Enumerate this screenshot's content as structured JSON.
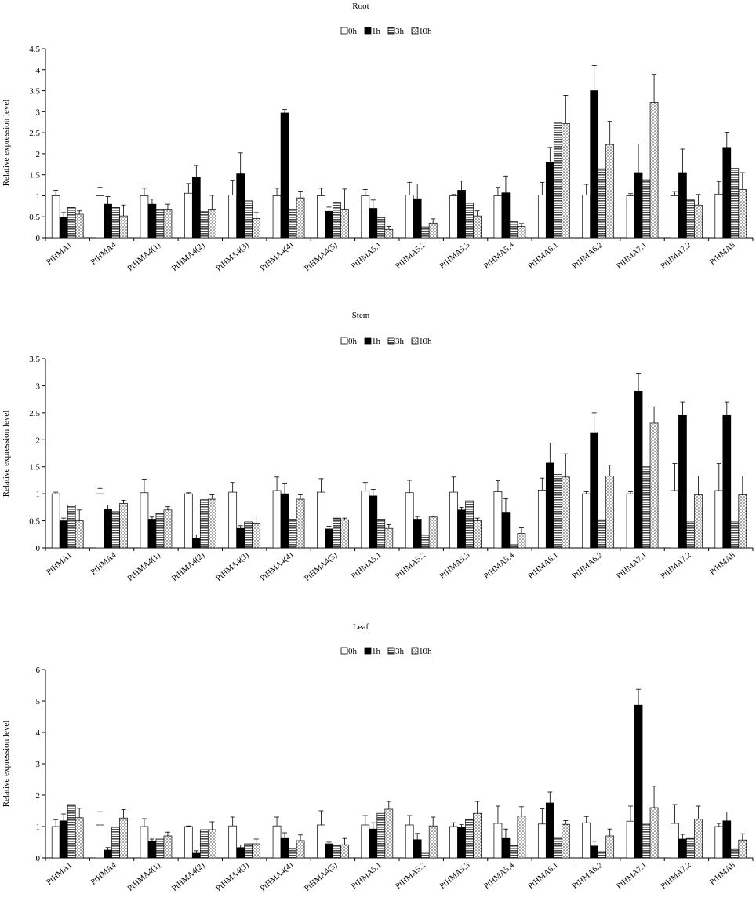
{
  "series_styles": [
    {
      "name": "0h",
      "fill": "#ffffff",
      "pattern": "none"
    },
    {
      "name": "1h",
      "fill": "#000000",
      "pattern": "none"
    },
    {
      "name": "3h",
      "fill": "#5a5a5a",
      "pattern": "hstripes"
    },
    {
      "name": "10h",
      "fill": "#ffffff",
      "pattern": "dots"
    }
  ],
  "chart_data": [
    {
      "type": "bar",
      "title": "Root",
      "ylabel": "Relative expression level",
      "xlabel": "",
      "ylim": [
        0,
        4.5
      ],
      "yticks": [
        "0",
        "0.5",
        "1",
        "1.5",
        "2",
        "2.5",
        "3",
        "3.5",
        "4",
        "4.5"
      ],
      "legend": "top-center",
      "grid": false,
      "categories": [
        "PtHMA1",
        "PtHMA4",
        "PtHMA4(1)",
        "PtHMA4(2)",
        "PtHMA4(3)",
        "PtHMA4(4)",
        "PtHMA4(5)",
        "PtHMA5.1",
        "PtHMA5.2",
        "PtHMA5.3",
        "PtHMA5.4",
        "PtHMA6.1",
        "PtHMA6.2",
        "PtHMA7.1",
        "PtHMA7.2",
        "PtHMA8"
      ],
      "series": [
        {
          "name": "0h",
          "values": [
            1.0,
            1.0,
            1.0,
            1.06,
            1.02,
            1.0,
            1.0,
            1.0,
            1.02,
            1.0,
            1.0,
            1.02,
            1.02,
            1.0,
            1.0,
            1.04
          ],
          "errors": [
            0.13,
            0.2,
            0.18,
            0.23,
            0.35,
            0.18,
            0.18,
            0.15,
            0.3,
            0.03,
            0.2,
            0.3,
            0.25,
            0.05,
            0.1,
            0.3
          ]
        },
        {
          "name": "1h",
          "values": [
            0.48,
            0.8,
            0.8,
            1.44,
            1.52,
            2.97,
            0.63,
            0.7,
            0.93,
            1.13,
            1.07,
            1.8,
            3.5,
            1.55,
            1.55,
            2.15
          ],
          "errors": [
            0.12,
            0.18,
            0.12,
            0.28,
            0.5,
            0.08,
            0.1,
            0.2,
            0.35,
            0.22,
            0.4,
            0.35,
            0.6,
            0.68,
            0.56,
            0.36
          ]
        },
        {
          "name": "3h",
          "values": [
            0.72,
            0.72,
            0.68,
            0.62,
            0.88,
            0.68,
            0.85,
            0.48,
            0.26,
            0.83,
            0.38,
            2.73,
            1.64,
            1.38,
            0.9,
            1.65
          ]
        },
        {
          "name": "10h",
          "values": [
            0.56,
            0.52,
            0.68,
            0.68,
            0.46,
            0.95,
            0.68,
            0.2,
            0.35,
            0.52,
            0.27,
            2.72,
            2.22,
            3.22,
            0.78,
            1.15
          ],
          "errors": [
            0.08,
            0.26,
            0.12,
            0.33,
            0.14,
            0.16,
            0.48,
            0.07,
            0.1,
            0.12,
            0.07,
            0.67,
            0.55,
            0.67,
            0.25,
            0.4
          ]
        }
      ]
    },
    {
      "type": "bar",
      "title": "Stem",
      "ylabel": "Relative expression level",
      "xlabel": "",
      "ylim": [
        0,
        3.5
      ],
      "yticks": [
        "0",
        "0.5",
        "1",
        "1.5",
        "2",
        "2.5",
        "3",
        "3.5"
      ],
      "legend": "top-center",
      "grid": false,
      "categories": [
        "PtHMA1",
        "PtHMA4",
        "PtHMA4(1)",
        "PtHMA4(2)",
        "PtHMA4(3)",
        "PtHMA4(4)",
        "PtHMA4(5)",
        "PtHMA5.1",
        "PtHMA5.2",
        "PtHMA5.3",
        "PtHMA5.4",
        "PtHMA6.1",
        "PtHMA6.2",
        "PtHMA7.1",
        "PtHMA7.2",
        "PtHMA8"
      ],
      "series": [
        {
          "name": "0h",
          "values": [
            1.0,
            1.0,
            1.02,
            1.0,
            1.03,
            1.06,
            1.03,
            1.05,
            1.02,
            1.03,
            1.04,
            1.07,
            1.0,
            1.0,
            1.06,
            1.06
          ],
          "errors": [
            0.03,
            0.1,
            0.25,
            0.02,
            0.18,
            0.25,
            0.25,
            0.16,
            0.23,
            0.28,
            0.2,
            0.22,
            0.04,
            0.04,
            0.5,
            0.5
          ]
        },
        {
          "name": "1h",
          "values": [
            0.5,
            0.71,
            0.53,
            0.17,
            0.36,
            1.0,
            0.35,
            0.96,
            0.53,
            0.7,
            0.66,
            1.57,
            2.12,
            2.9,
            2.45,
            2.45
          ],
          "errors": [
            0.05,
            0.08,
            0.04,
            0.07,
            0.05,
            0.2,
            0.05,
            0.12,
            0.05,
            0.05,
            0.25,
            0.37,
            0.38,
            0.33,
            0.25,
            0.25
          ]
        },
        {
          "name": "3h",
          "values": [
            0.79,
            0.67,
            0.64,
            0.89,
            0.48,
            0.53,
            0.55,
            0.53,
            0.24,
            0.87,
            0.06,
            1.36,
            0.52,
            1.5,
            0.48,
            0.48
          ]
        },
        {
          "name": "10h",
          "values": [
            0.5,
            0.82,
            0.7,
            0.9,
            0.46,
            0.9,
            0.52,
            0.36,
            0.57,
            0.5,
            0.27,
            1.31,
            1.33,
            2.31,
            0.98,
            0.98
          ],
          "errors": [
            0.2,
            0.06,
            0.06,
            0.08,
            0.13,
            0.08,
            0.03,
            0.07,
            0.02,
            0.05,
            0.1,
            0.43,
            0.2,
            0.3,
            0.35,
            0.35
          ]
        }
      ]
    },
    {
      "type": "bar",
      "title": "Leaf",
      "ylabel": "Relative expression level",
      "xlabel": "",
      "ylim": [
        0,
        6
      ],
      "yticks": [
        "0",
        "1",
        "2",
        "3",
        "4",
        "5",
        "6"
      ],
      "legend": "top-center",
      "grid": false,
      "categories": [
        "PtHMA1",
        "PtHMA4",
        "PtHMA4(1)",
        "PtHMA4(2)",
        "PtHMA4(3)",
        "PtHMA4(4)",
        "PtHMA4(5)",
        "PtHMA5.1",
        "PtHMA5.2",
        "PtHMA5.3",
        "PtHMA5.4",
        "PtHMA6.1",
        "PtHMA6.2",
        "PtHMA7.1",
        "PtHMA7.2",
        "PtHMA8"
      ],
      "series": [
        {
          "name": "0h",
          "values": [
            1.0,
            1.05,
            1.0,
            1.0,
            1.02,
            1.02,
            1.05,
            1.05,
            1.05,
            1.0,
            1.1,
            1.08,
            1.12,
            1.17,
            1.1,
            1.0
          ],
          "errors": [
            0.22,
            0.42,
            0.25,
            0.02,
            0.28,
            0.28,
            0.45,
            0.3,
            0.3,
            0.12,
            0.55,
            0.48,
            0.2,
            0.48,
            0.6,
            0.1
          ]
        },
        {
          "name": "1h",
          "values": [
            1.18,
            0.25,
            0.52,
            0.15,
            0.33,
            0.62,
            0.45,
            0.92,
            0.58,
            0.98,
            0.62,
            1.75,
            0.38,
            4.87,
            0.6,
            1.18
          ],
          "errors": [
            0.22,
            0.08,
            0.08,
            0.08,
            0.08,
            0.18,
            0.05,
            0.2,
            0.2,
            0.08,
            0.3,
            0.35,
            0.15,
            0.5,
            0.15,
            0.28
          ]
        },
        {
          "name": "3h",
          "values": [
            1.7,
            0.98,
            0.6,
            0.9,
            0.45,
            0.28,
            0.4,
            1.42,
            0.15,
            1.22,
            0.4,
            0.65,
            0.2,
            1.1,
            0.62,
            0.27
          ]
        },
        {
          "name": "10h",
          "values": [
            1.28,
            1.27,
            0.7,
            0.9,
            0.45,
            0.55,
            0.42,
            1.55,
            1.02,
            1.42,
            1.33,
            1.07,
            0.7,
            1.6,
            1.23,
            0.57
          ],
          "errors": [
            0.3,
            0.27,
            0.12,
            0.25,
            0.15,
            0.18,
            0.2,
            0.25,
            0.28,
            0.38,
            0.3,
            0.12,
            0.22,
            0.68,
            0.42,
            0.2
          ]
        }
      ]
    }
  ]
}
